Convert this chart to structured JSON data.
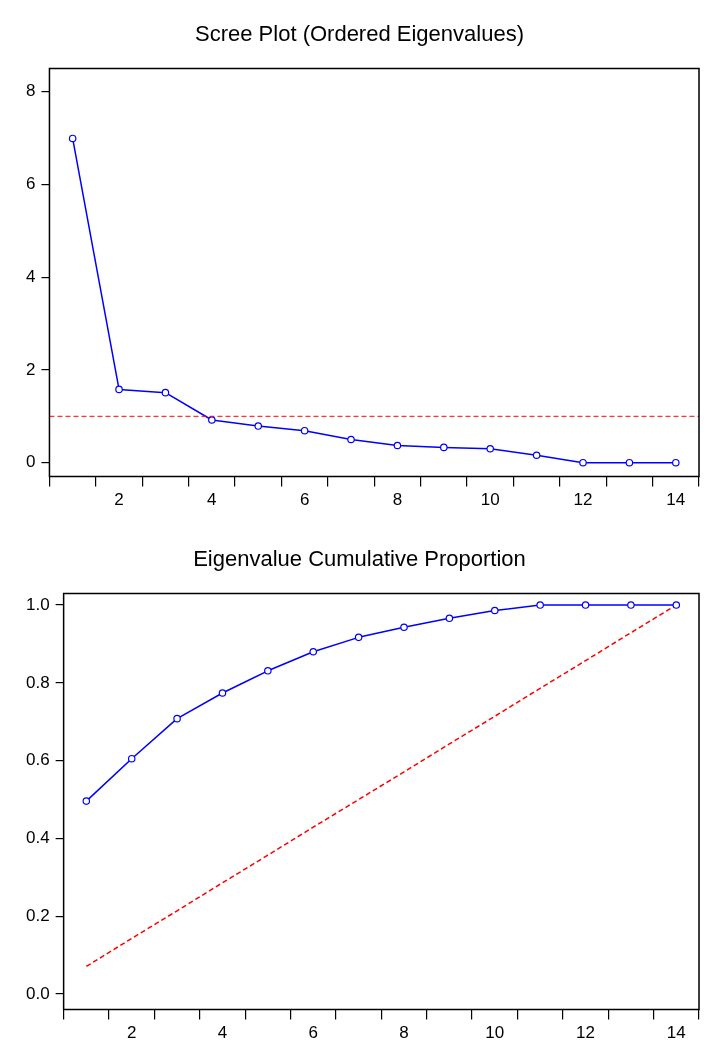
{
  "chart_data": [
    {
      "type": "line",
      "title": "Scree Plot (Ordered Eigenvalues)",
      "categories": [
        null,
        "2",
        null,
        "4",
        null,
        "6",
        null,
        "8",
        null,
        "10",
        null,
        "12",
        null,
        "14"
      ],
      "series": [
        {
          "color": "#0000ff",
          "marker": "circle",
          "values": [
            6.99,
            1.58,
            1.51,
            0.92,
            0.79,
            0.69,
            0.5,
            0.37,
            0.33,
            0.3,
            0.16,
            0,
            0,
            0
          ]
        }
      ],
      "ylim": [
        -0.3,
        8.5
      ],
      "yticks": [
        0,
        2,
        4,
        6,
        8
      ],
      "ref_lines": [
        {
          "axis": "y",
          "value": 1,
          "color": "#ff0000",
          "line_style": "dashed"
        }
      ],
      "grid": false,
      "legend": false
    },
    {
      "type": "line",
      "title": "Eigenvalue Cumulative Proportion",
      "categories": [
        null,
        "2",
        null,
        "4",
        null,
        "6",
        null,
        "8",
        null,
        "10",
        null,
        "12",
        null,
        "14"
      ],
      "series": [
        {
          "color": "#0000ff",
          "marker": "circle",
          "values": [
            0.496,
            0.605,
            0.708,
            0.774,
            0.831,
            0.88,
            0.917,
            0.943,
            0.966,
            0.986,
            1.0,
            1.0,
            1.0,
            1.0
          ]
        },
        {
          "color": "#ff0000",
          "marker": "none",
          "line_style": "dashed",
          "values": [
            0.071,
            0.143,
            0.214,
            0.286,
            0.357,
            0.429,
            0.5,
            0.571,
            0.643,
            0.714,
            0.786,
            0.857,
            0.929,
            1.0
          ]
        }
      ],
      "ylim": [
        -0.04,
        1.03
      ],
      "yticks": [
        {
          "value": 0,
          "label": "0.0"
        },
        0.2,
        0.4,
        0.6,
        0.8,
        {
          "value": 1,
          "label": "1.0"
        }
      ],
      "grid": false,
      "legend": false
    }
  ]
}
